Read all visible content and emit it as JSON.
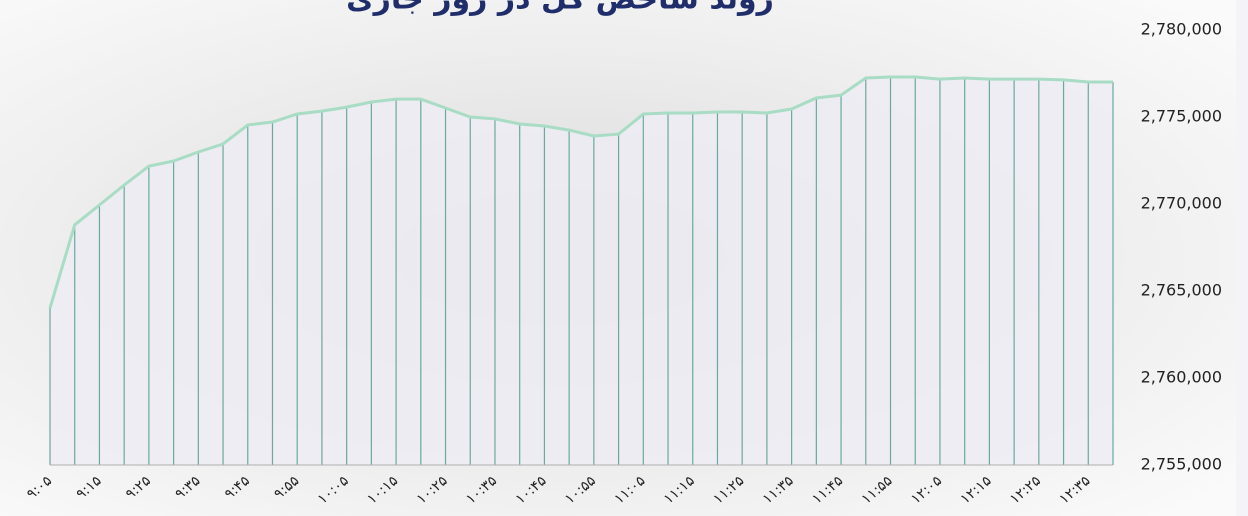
{
  "chart_data": {
    "type": "area",
    "title": "روند شاخص کل در روز جاری",
    "categories": [
      "۹:۰۵",
      null,
      "۹:۱۵",
      null,
      "۹:۲۵",
      null,
      "۹:۳۵",
      null,
      "۹:۴۵",
      null,
      "۹:۵۵",
      null,
      "۱۰:۰۵",
      null,
      "۱۰:۱۵",
      null,
      "۱۰:۲۵",
      null,
      "۱۰:۳۵",
      null,
      "۱۰:۴۵",
      null,
      "۱۰:۵۵",
      null,
      "۱۱:۰۵",
      null,
      "۱۱:۱۵",
      null,
      "۱۱:۲۵",
      null,
      "۱۱:۳۵",
      null,
      "۱۱:۴۵",
      null,
      "۱۱:۵۵",
      null,
      "۱۲:۰۵",
      null,
      "۱۲:۱۵",
      null,
      "۱۲:۲۵",
      null,
      "۱۲:۳۵",
      null
    ],
    "values": [
      2764020,
      2768800,
      2769940,
      2771090,
      2772180,
      2772470,
      2772990,
      2773450,
      2774540,
      2774710,
      2775170,
      2775340,
      2775570,
      2775860,
      2776030,
      2776030,
      2775520,
      2775000,
      2774890,
      2774600,
      2774480,
      2774250,
      2773910,
      2774020,
      2775170,
      2775230,
      2775230,
      2775290,
      2775290,
      2775230,
      2775460,
      2776090,
      2776260,
      2777240,
      2777300,
      2777300,
      2777180,
      2777240,
      2777180,
      2777180,
      2777180,
      2777130,
      2777010,
      2777010
    ],
    "color": "#a9dcc4",
    "ylim": [
      2755000,
      2780000
    ],
    "yticks": [
      {
        "value": 2755000,
        "label": "2,755,000"
      },
      {
        "value": 2760000,
        "label": "2,760,000"
      },
      {
        "value": 2765000,
        "label": "2,765,000"
      },
      {
        "value": 2770000,
        "label": "2,770,000"
      },
      {
        "value": 2775000,
        "label": "2,775,000"
      },
      {
        "value": 2780000,
        "label": "2,780,000"
      }
    ]
  }
}
